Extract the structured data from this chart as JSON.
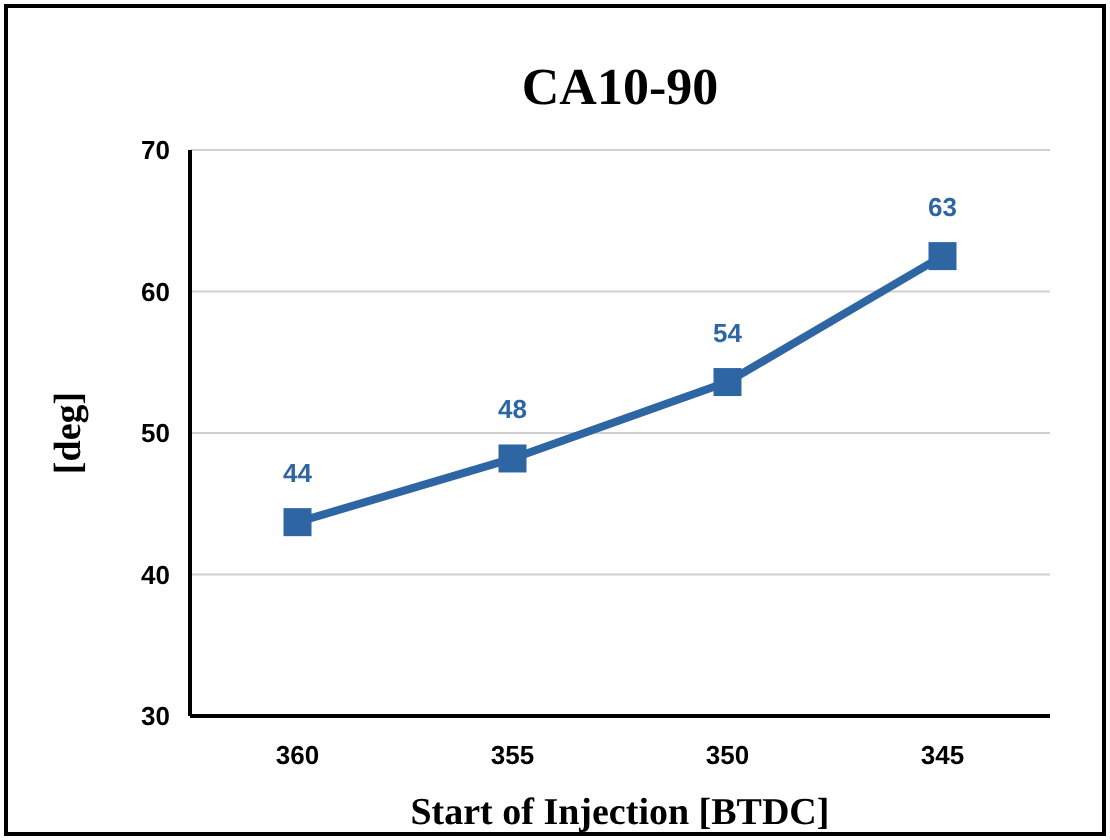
{
  "chart_data": {
    "type": "line",
    "title": "CA10-90",
    "xlabel": "Start of Injection [BTDC]",
    "ylabel": "[deg]",
    "categories": [
      "360",
      "355",
      "350",
      "345"
    ],
    "series": [
      {
        "color": "#2e65a3",
        "values": [
          43.7,
          48.2,
          53.6,
          62.5
        ],
        "value_labels": [
          "44",
          "48",
          "54",
          "63"
        ]
      }
    ],
    "ylim": [
      30,
      70
    ],
    "yticks": [
      30,
      40,
      50,
      60,
      70
    ],
    "grid": "y",
    "marker": "square",
    "line_style": "solid"
  }
}
